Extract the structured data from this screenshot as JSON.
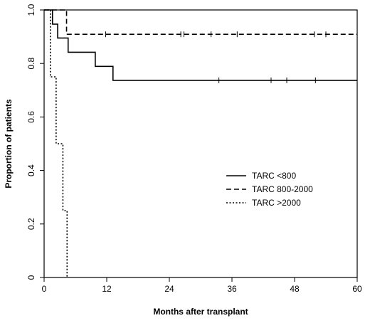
{
  "chart_data": {
    "type": "line",
    "subtype": "kaplan-meier",
    "xlabel": "Months after transplant",
    "ylabel": "Proportion of patients",
    "xlim": [
      0,
      60
    ],
    "ylim": [
      0,
      1
    ],
    "xticks": [
      0,
      12,
      24,
      36,
      48,
      60
    ],
    "xtick_labels": [
      "0",
      "12",
      "24",
      "36",
      "48",
      "60"
    ],
    "yticks": [
      0,
      0.2,
      0.4,
      0.6,
      0.8,
      1.0
    ],
    "ytick_labels": [
      "0",
      "0.2",
      "0.4",
      "0.6",
      "0.8",
      "1.0"
    ],
    "grid": false,
    "legend_position": "center-right",
    "series": [
      {
        "name": "TARC <800",
        "style": "solid",
        "steps": [
          [
            0,
            1.0
          ],
          [
            1.6,
            0.947
          ],
          [
            2.6,
            0.895
          ],
          [
            4.6,
            0.842
          ],
          [
            9.8,
            0.789
          ],
          [
            13.2,
            0.737
          ],
          [
            60,
            0.737
          ]
        ],
        "censored": [
          [
            33.5,
            0.737
          ],
          [
            43.5,
            0.737
          ],
          [
            46.5,
            0.737
          ],
          [
            52,
            0.737
          ]
        ]
      },
      {
        "name": "TARC 800-2000",
        "style": "dashed",
        "steps": [
          [
            0,
            1.0
          ],
          [
            4.3,
            0.909
          ],
          [
            60,
            0.909
          ]
        ],
        "censored": [
          [
            11.8,
            0.909
          ],
          [
            26.2,
            0.909
          ],
          [
            26.8,
            0.909
          ],
          [
            32,
            0.909
          ],
          [
            37,
            0.909
          ],
          [
            51.8,
            0.909
          ],
          [
            54,
            0.909
          ]
        ]
      },
      {
        "name": "TARC >2000",
        "style": "dotted",
        "steps": [
          [
            0,
            1.0
          ],
          [
            1.2,
            0.75
          ],
          [
            2.3,
            0.5
          ],
          [
            3.6,
            0.25
          ],
          [
            4.4,
            0.0
          ]
        ],
        "censored": []
      }
    ]
  }
}
